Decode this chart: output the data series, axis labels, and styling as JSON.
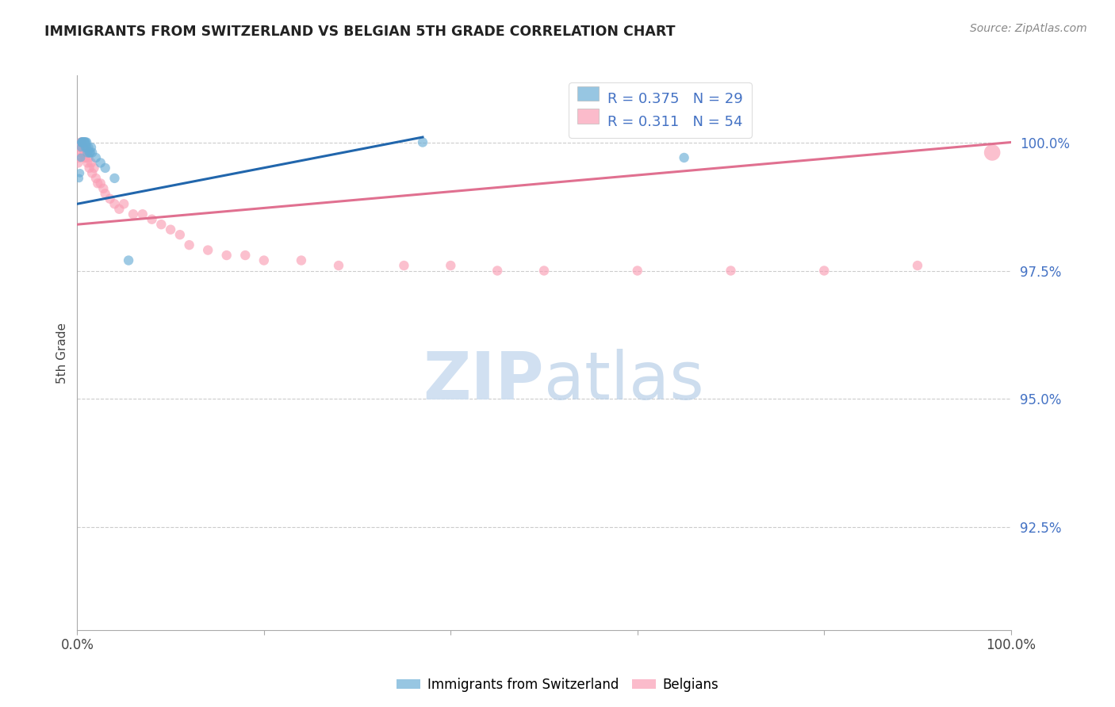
{
  "title": "IMMIGRANTS FROM SWITZERLAND VS BELGIAN 5TH GRADE CORRELATION CHART",
  "source": "Source: ZipAtlas.com",
  "ylabel": "5th Grade",
  "ytick_labels": [
    "100.0%",
    "97.5%",
    "95.0%",
    "92.5%"
  ],
  "ytick_values": [
    1.0,
    0.975,
    0.95,
    0.925
  ],
  "xlim": [
    0.0,
    1.0
  ],
  "ylim": [
    0.905,
    1.013
  ],
  "blue_color": "#6baed6",
  "pink_color": "#fa9fb5",
  "blue_line_color": "#2166ac",
  "pink_line_color": "#e07090",
  "swiss_x": [
    0.002,
    0.003,
    0.004,
    0.004,
    0.005,
    0.005,
    0.006,
    0.006,
    0.007,
    0.007,
    0.008,
    0.008,
    0.009,
    0.009,
    0.01,
    0.01,
    0.011,
    0.012,
    0.013,
    0.014,
    0.015,
    0.016,
    0.02,
    0.025,
    0.03,
    0.04,
    0.055,
    0.37,
    0.65
  ],
  "swiss_y": [
    0.993,
    0.994,
    0.997,
    0.999,
    1.0,
    1.0,
    1.0,
    1.0,
    1.0,
    1.0,
    1.0,
    1.0,
    1.0,
    0.999,
    1.0,
    0.999,
    0.998,
    0.999,
    0.998,
    0.998,
    0.999,
    0.998,
    0.997,
    0.996,
    0.995,
    0.993,
    0.977,
    1.0,
    0.997
  ],
  "swiss_size": [
    60,
    60,
    60,
    60,
    80,
    80,
    80,
    80,
    80,
    80,
    80,
    80,
    80,
    80,
    80,
    80,
    80,
    80,
    80,
    80,
    80,
    80,
    80,
    80,
    80,
    80,
    80,
    80,
    80
  ],
  "belgian_x": [
    0.001,
    0.002,
    0.003,
    0.003,
    0.004,
    0.004,
    0.005,
    0.005,
    0.006,
    0.006,
    0.007,
    0.007,
    0.008,
    0.008,
    0.009,
    0.009,
    0.01,
    0.011,
    0.012,
    0.013,
    0.015,
    0.016,
    0.018,
    0.02,
    0.022,
    0.025,
    0.028,
    0.03,
    0.035,
    0.04,
    0.045,
    0.05,
    0.06,
    0.07,
    0.08,
    0.09,
    0.1,
    0.11,
    0.12,
    0.14,
    0.16,
    0.18,
    0.2,
    0.24,
    0.28,
    0.35,
    0.4,
    0.45,
    0.5,
    0.6,
    0.7,
    0.8,
    0.9,
    0.98
  ],
  "belgian_y": [
    0.996,
    0.997,
    0.998,
    0.999,
    0.999,
    1.0,
    1.0,
    0.999,
    1.0,
    0.999,
    0.999,
    0.998,
    0.998,
    0.997,
    0.999,
    0.997,
    0.998,
    0.996,
    0.997,
    0.995,
    0.996,
    0.994,
    0.995,
    0.993,
    0.992,
    0.992,
    0.991,
    0.99,
    0.989,
    0.988,
    0.987,
    0.988,
    0.986,
    0.986,
    0.985,
    0.984,
    0.983,
    0.982,
    0.98,
    0.979,
    0.978,
    0.978,
    0.977,
    0.977,
    0.976,
    0.976,
    0.976,
    0.975,
    0.975,
    0.975,
    0.975,
    0.975,
    0.976,
    0.998
  ],
  "belgian_size": [
    80,
    80,
    80,
    80,
    80,
    80,
    80,
    80,
    80,
    80,
    80,
    80,
    80,
    80,
    80,
    80,
    80,
    80,
    80,
    80,
    80,
    80,
    80,
    80,
    80,
    80,
    80,
    80,
    80,
    80,
    80,
    80,
    80,
    80,
    80,
    80,
    80,
    80,
    80,
    80,
    80,
    80,
    80,
    80,
    80,
    80,
    80,
    80,
    80,
    80,
    80,
    80,
    80,
    220
  ],
  "swiss_trendline_x": [
    0.0,
    0.37
  ],
  "swiss_trendline_y": [
    0.988,
    1.001
  ],
  "belgian_trendline_x": [
    0.0,
    1.0
  ],
  "belgian_trendline_y": [
    0.984,
    1.0
  ]
}
